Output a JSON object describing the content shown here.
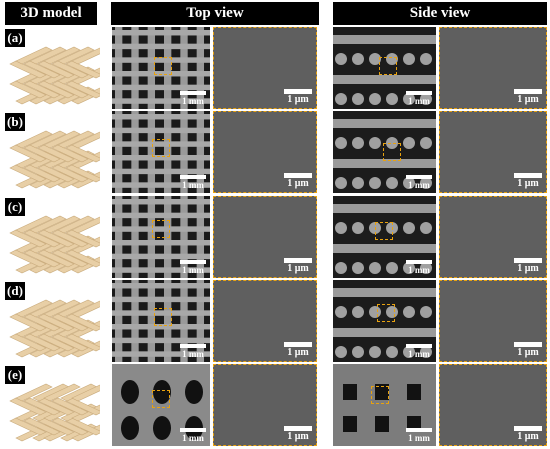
{
  "headers": {
    "model": "3D model",
    "top": "Top view",
    "side": "Side view"
  },
  "rows": [
    {
      "label": "(a)"
    },
    {
      "label": "(b)"
    },
    {
      "label": "(c)"
    },
    {
      "label": "(d)"
    },
    {
      "label": "(e)"
    }
  ],
  "scale_labels": {
    "low_mag": "1 mm",
    "high_mag": "1 μm"
  },
  "colors": {
    "header_bg": "#000000",
    "model_fill": "#e8cfa6",
    "roi_dash": "#e8a20f",
    "sem_dark": "#3a3a3a",
    "sem_surface": "#5f5f5f"
  }
}
